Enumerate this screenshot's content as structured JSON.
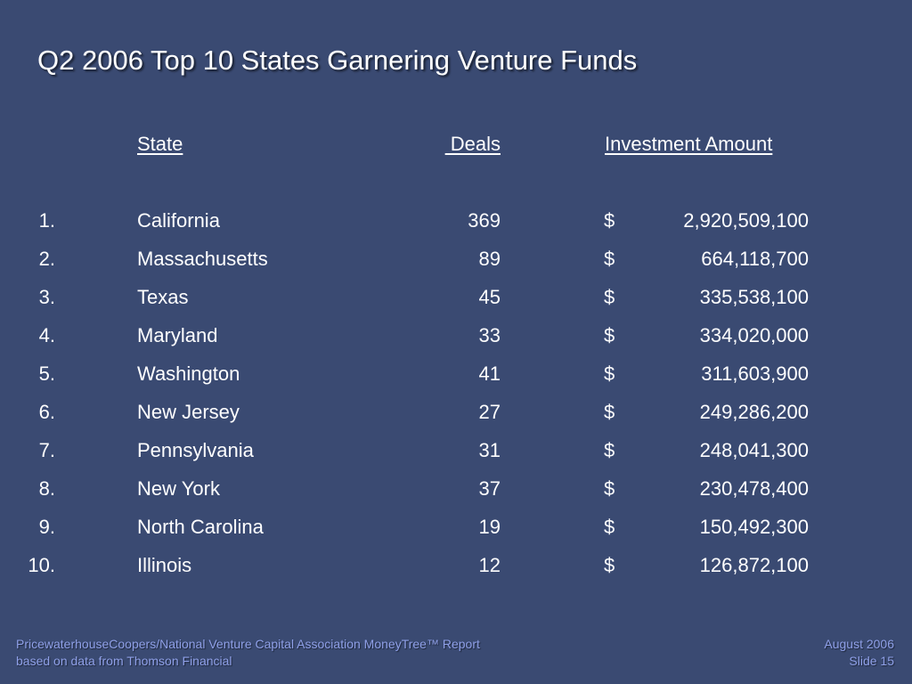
{
  "slide": {
    "title": "Q2 2006 Top 10 States Garnering Venture Funds"
  },
  "table": {
    "headers": {
      "state": "State",
      "deals": " Deals",
      "investment": "Investment Amount"
    },
    "currency_symbol": "$",
    "rows": [
      {
        "rank": "1.",
        "state": "California",
        "deals": "369",
        "amount": "2,920,509,100"
      },
      {
        "rank": "2.",
        "state": "Massachusetts",
        "deals": "89",
        "amount": "664,118,700"
      },
      {
        "rank": "3.",
        "state": "Texas",
        "deals": "45",
        "amount": "335,538,100"
      },
      {
        "rank": "4.",
        "state": "Maryland",
        "deals": "33",
        "amount": "334,020,000"
      },
      {
        "rank": "5.",
        "state": "Washington",
        "deals": "41",
        "amount": "311,603,900"
      },
      {
        "rank": "6.",
        "state": "New Jersey",
        "deals": "27",
        "amount": "249,286,200"
      },
      {
        "rank": "7.",
        "state": "Pennsylvania",
        "deals": "31",
        "amount": "248,041,300"
      },
      {
        "rank": "8.",
        "state": "New York",
        "deals": "37",
        "amount": "230,478,400"
      },
      {
        "rank": "9.",
        "state": "North Carolina",
        "deals": "19",
        "amount": "150,492,300"
      },
      {
        "rank": "10.",
        "state": "Illinois",
        "deals": "12",
        "amount": "126,872,100"
      }
    ]
  },
  "footer": {
    "source_line1": "PricewaterhouseCoopers/National Venture Capital Association MoneyTree™ Report",
    "source_line2": "based on data from Thomson Financial",
    "date": "August 2006",
    "slide_number": "Slide 15"
  },
  "colors": {
    "background": "#3a4a72",
    "text": "#ffffff",
    "footer_text": "#8fa0e8"
  }
}
